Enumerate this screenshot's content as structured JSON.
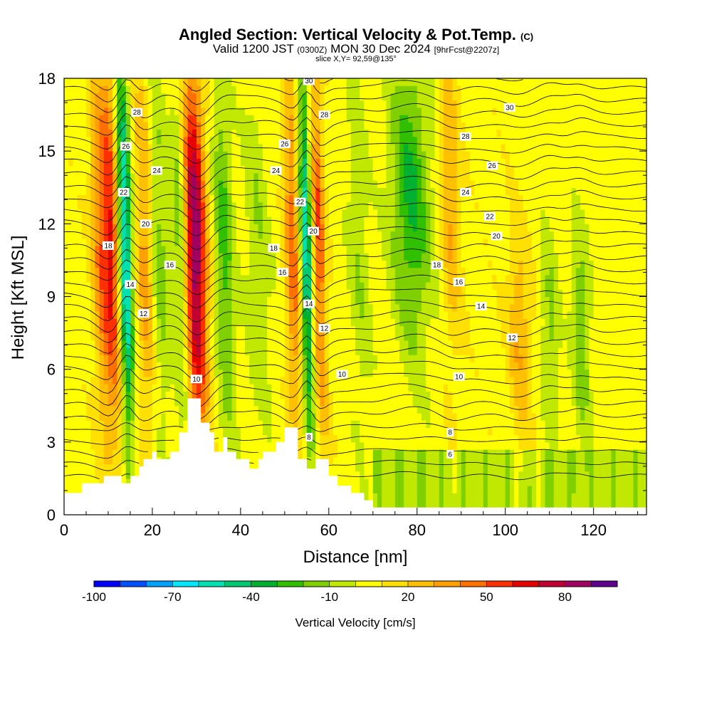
{
  "header": {
    "title": "Angled Section: Vertical Velocity & Pot.Temp.",
    "title_suffix": "(C)",
    "valid_prefix": "Valid 1200 JST",
    "valid_zulu": "(0300Z)",
    "valid_date": "MON 30 Dec 2024",
    "forecast": "[9hrFcst@2207z]",
    "slice": "slice X,Y= 92,59@135°"
  },
  "chart_data": {
    "type": "heatmap",
    "xlabel": "Distance [nm]",
    "ylabel": "Height [Kft MSL]",
    "xlim": [
      0,
      132
    ],
    "ylim": [
      0,
      18
    ],
    "x_ticks": [
      0,
      20,
      40,
      60,
      80,
      100,
      120
    ],
    "y_ticks": [
      0,
      3,
      6,
      9,
      12,
      15,
      18
    ],
    "colorbar": {
      "label": "Vertical Velocity [cm/s]",
      "tick_labels": [
        "-100",
        "-70",
        "-40",
        "-10",
        "20",
        "50",
        "80"
      ],
      "min": -100,
      "max": 100,
      "step": 10,
      "colors": [
        "#0000ff",
        "#0050ff",
        "#00a0ff",
        "#00e8ff",
        "#00e0b0",
        "#00c870",
        "#00b030",
        "#30c000",
        "#80d000",
        "#c0e800",
        "#ffff00",
        "#ffe000",
        "#ffc000",
        "#ffa000",
        "#ff7000",
        "#ff3000",
        "#e80000",
        "#c00030",
        "#a00060",
        "#600090"
      ]
    },
    "updraft_bands": [
      {
        "x": 8.5,
        "width": 2.0,
        "value": 35
      },
      {
        "x": 11,
        "width": 1.8,
        "value": 50
      },
      {
        "x": 14,
        "width": 1.4,
        "value": -75
      },
      {
        "x": 18.5,
        "width": 1.8,
        "value": 30
      },
      {
        "x": 22,
        "width": 2.2,
        "value": -20
      },
      {
        "x": 26.5,
        "width": 1.6,
        "value": -25
      },
      {
        "x": 30,
        "width": 2.4,
        "value": 85
      },
      {
        "x": 36.5,
        "width": 2.2,
        "value": -30
      },
      {
        "x": 44,
        "width": 2.8,
        "value": -15
      },
      {
        "x": 52,
        "width": 1.6,
        "value": 40
      },
      {
        "x": 55,
        "width": 1.2,
        "value": -65
      },
      {
        "x": 58,
        "width": 1.4,
        "value": 45
      },
      {
        "x": 67,
        "width": 2.5,
        "value": -15
      },
      {
        "x": 79,
        "width": 4.5,
        "value": -38
      },
      {
        "x": 88,
        "width": 2.2,
        "value": 25
      },
      {
        "x": 103,
        "width": 2.5,
        "value": 25
      },
      {
        "x": 110,
        "width": 2.0,
        "value": -20
      },
      {
        "x": 117,
        "width": 2.0,
        "value": -28
      }
    ],
    "isentrope_labels": [
      "6",
      "8",
      "10",
      "12",
      "14",
      "16",
      "18",
      "20",
      "22",
      "24",
      "26",
      "28",
      "30"
    ],
    "isentrope_labels_placed": [
      {
        "x": 30,
        "y": 5.6,
        "t": "10"
      },
      {
        "x": 18,
        "y": 8.3,
        "t": "12"
      },
      {
        "x": 15,
        "y": 9.5,
        "t": "14"
      },
      {
        "x": 24,
        "y": 10.3,
        "t": "16"
      },
      {
        "x": 10,
        "y": 11.1,
        "t": "18"
      },
      {
        "x": 18.5,
        "y": 12.0,
        "t": "20"
      },
      {
        "x": 13.5,
        "y": 13.3,
        "t": "22"
      },
      {
        "x": 21,
        "y": 14.2,
        "t": "24"
      },
      {
        "x": 14,
        "y": 15.2,
        "t": "26"
      },
      {
        "x": 16.5,
        "y": 16.6,
        "t": "28"
      },
      {
        "x": 50,
        "y": 15.3,
        "t": "26"
      },
      {
        "x": 48,
        "y": 14.2,
        "t": "24"
      },
      {
        "x": 47.5,
        "y": 11.0,
        "t": "18"
      },
      {
        "x": 49.5,
        "y": 10.0,
        "t": "16"
      },
      {
        "x": 55.5,
        "y": 17.9,
        "t": "30"
      },
      {
        "x": 59,
        "y": 16.5,
        "t": "28"
      },
      {
        "x": 53.5,
        "y": 12.9,
        "t": "22"
      },
      {
        "x": 56.5,
        "y": 11.7,
        "t": "20"
      },
      {
        "x": 55.5,
        "y": 8.7,
        "t": "14"
      },
      {
        "x": 59,
        "y": 7.7,
        "t": "12"
      },
      {
        "x": 63,
        "y": 5.8,
        "t": "10"
      },
      {
        "x": 55.5,
        "y": 3.2,
        "t": "8"
      },
      {
        "x": 101,
        "y": 16.8,
        "t": "30"
      },
      {
        "x": 91,
        "y": 15.6,
        "t": "28"
      },
      {
        "x": 97,
        "y": 14.4,
        "t": "26"
      },
      {
        "x": 91,
        "y": 13.3,
        "t": "24"
      },
      {
        "x": 96.5,
        "y": 12.3,
        "t": "22"
      },
      {
        "x": 98,
        "y": 11.5,
        "t": "20"
      },
      {
        "x": 84.5,
        "y": 10.3,
        "t": "18"
      },
      {
        "x": 89.5,
        "y": 9.6,
        "t": "16"
      },
      {
        "x": 94.5,
        "y": 8.6,
        "t": "14"
      },
      {
        "x": 101.5,
        "y": 7.3,
        "t": "12"
      },
      {
        "x": 89.5,
        "y": 5.7,
        "t": "10"
      },
      {
        "x": 87.5,
        "y": 3.4,
        "t": "8"
      },
      {
        "x": 87.5,
        "y": 2.5,
        "t": "6"
      }
    ],
    "terrain": [
      [
        0,
        0.9
      ],
      [
        4,
        0.9
      ],
      [
        4,
        1.3
      ],
      [
        9,
        1.3
      ],
      [
        9,
        1.6
      ],
      [
        13,
        1.6
      ],
      [
        13,
        1.3
      ],
      [
        15,
        1.3
      ],
      [
        15,
        1.6
      ],
      [
        17,
        1.6
      ],
      [
        17,
        2.0
      ],
      [
        18,
        2.0
      ],
      [
        18,
        2.3
      ],
      [
        20,
        2.3
      ],
      [
        20,
        2.6
      ],
      [
        21,
        2.6
      ],
      [
        21,
        2.3
      ],
      [
        24,
        2.3
      ],
      [
        24,
        2.6
      ],
      [
        26,
        2.6
      ],
      [
        26,
        3.4
      ],
      [
        28,
        3.4
      ],
      [
        28,
        4.8
      ],
      [
        31,
        4.8
      ],
      [
        31,
        3.8
      ],
      [
        33,
        3.8
      ],
      [
        33,
        3.4
      ],
      [
        34,
        3.4
      ],
      [
        34,
        2.6
      ],
      [
        36,
        2.6
      ],
      [
        36,
        3.2
      ],
      [
        37,
        3.2
      ],
      [
        37,
        2.6
      ],
      [
        39,
        2.6
      ],
      [
        39,
        2.3
      ],
      [
        42,
        2.3
      ],
      [
        42,
        1.9
      ],
      [
        44,
        1.9
      ],
      [
        44,
        2.3
      ],
      [
        45,
        2.3
      ],
      [
        45,
        2.6
      ],
      [
        48,
        2.6
      ],
      [
        48,
        3.0
      ],
      [
        50,
        3.0
      ],
      [
        50,
        3.6
      ],
      [
        53,
        3.6
      ],
      [
        53,
        2.3
      ],
      [
        55,
        2.3
      ],
      [
        55,
        1.9
      ],
      [
        57,
        1.9
      ],
      [
        57,
        2.3
      ],
      [
        60,
        2.3
      ],
      [
        60,
        1.6
      ],
      [
        62,
        1.6
      ],
      [
        62,
        1.2
      ],
      [
        65,
        1.2
      ],
      [
        65,
        0.9
      ],
      [
        68,
        0.9
      ],
      [
        68,
        0.6
      ],
      [
        70,
        0.6
      ],
      [
        70,
        0.3
      ],
      [
        132,
        0.3
      ]
    ]
  }
}
